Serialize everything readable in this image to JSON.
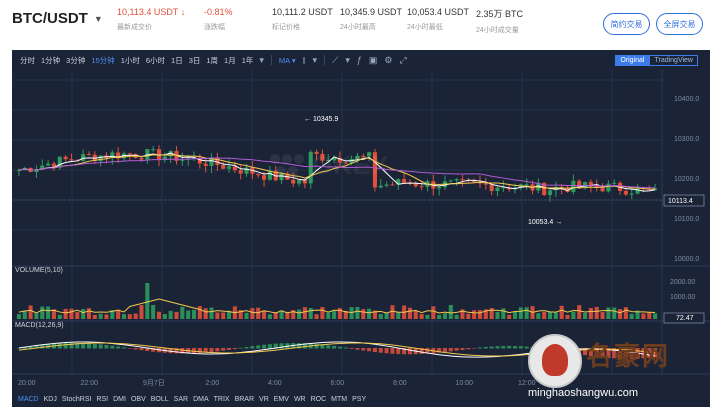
{
  "header": {
    "pair": "BTC/USDT",
    "last_price": "10,113.4 USDT",
    "last_price_label": "最新成交价",
    "change": "-0.81%",
    "change_label": "涨跌幅",
    "mark_price": "10,111.2 USDT",
    "mark_price_label": "标记价格",
    "high": "10,345.9 USDT",
    "high_label": "24小时最高",
    "low": "10,053.4 USDT",
    "low_label": "24小时最低",
    "volume": "2.35万 BTC",
    "volume_label": "24小时成交量",
    "btn_simple": "简约交易",
    "btn_full": "全屏交易"
  },
  "toolbar": {
    "intervals": [
      "分时",
      "1分钟",
      "3分钟",
      "15分钟",
      "1小时",
      "6小时",
      "1日",
      "3日",
      "1周",
      "1月",
      "1年"
    ],
    "active_interval": "15分钟",
    "indicator": "MA",
    "mode_original": "Original",
    "mode_tradingview": "TradingView"
  },
  "price_axis": [
    "10400.0",
    "10300.0",
    "10200.0",
    "10100.0",
    "10000.0"
  ],
  "current_price_tag": "10113.4",
  "annotations": {
    "high": "10345.9",
    "low": "10053.4"
  },
  "volume_panel": {
    "label": "VOLUME(5,10)",
    "axis": [
      "2000.00",
      "1000.00"
    ],
    "current": "72.47"
  },
  "macd_panel": {
    "label": "MACD(12,26,9)"
  },
  "time_axis": [
    "20:00",
    "22:00",
    "9月7日",
    "2:00",
    "4:00",
    "6:00",
    "8:00",
    "10:00",
    "12:00"
  ],
  "bottom_indicators": [
    "MACD",
    "KDJ",
    "StochRSI",
    "RSI",
    "DMI",
    "OBV",
    "BOLL",
    "SAR",
    "DMA",
    "TRIX",
    "BRAR",
    "VR",
    "EMV",
    "WR",
    "ROC",
    "MTM",
    "PSY"
  ],
  "active_bottom": "MACD",
  "watermark": "OKEX",
  "site": {
    "name": "名豪网",
    "url": "minghaoshangwu.com"
  },
  "colors": {
    "up": "#2e9b5e",
    "down": "#e0503b",
    "bg": "#1b2437",
    "accent": "#2f6fe0"
  }
}
